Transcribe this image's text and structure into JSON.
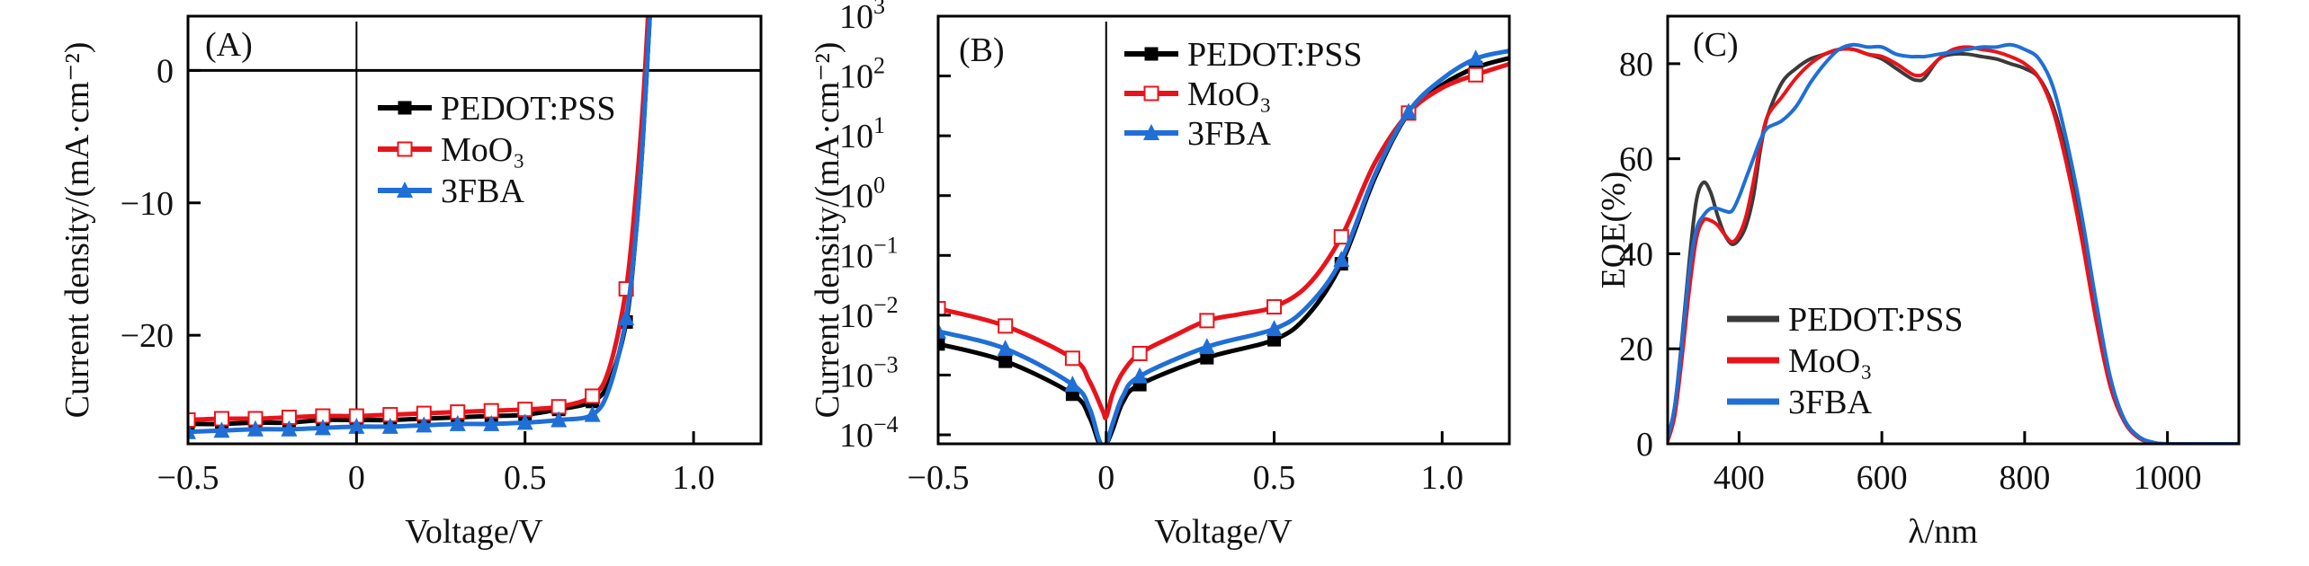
{
  "colors": {
    "pedot": "#000000",
    "moo3": "#e8141b",
    "fba": "#1f6fd6",
    "pedot_eqe": "#3a3a3a"
  },
  "chart_data": [
    {
      "id": "A",
      "type": "line",
      "panel_label": "(A)",
      "title": "",
      "xlabel": "Voltage/V",
      "ylabel": "Current density/(mA·cm⁻²)",
      "xlim": [
        -0.5,
        1.2
      ],
      "ylim": [
        -28.2,
        4.1
      ],
      "xticks": [
        -0.5,
        0,
        0.5,
        1.0
      ],
      "xtick_labels": [
        "−0.5",
        "0",
        "0.5",
        "1.0"
      ],
      "yticks": [
        0,
        -10,
        -20
      ],
      "ytick_labels": [
        "0",
        "−10",
        "−20"
      ],
      "zero_lines": {
        "x": 0,
        "y": 0
      },
      "legend_position": "upper-center",
      "series": [
        {
          "name": "PEDOT:PSS",
          "color_key": "pedot",
          "marker": "filled-square",
          "x": [
            -0.5,
            -0.4,
            -0.3,
            -0.2,
            -0.1,
            0,
            0.1,
            0.2,
            0.3,
            0.4,
            0.5,
            0.6,
            0.7,
            0.75,
            0.8,
            0.83,
            0.85,
            0.87
          ],
          "y": [
            -26.7,
            -26.7,
            -26.6,
            -26.6,
            -26.4,
            -26.4,
            -26.4,
            -26.3,
            -26.2,
            -26.1,
            -26.0,
            -25.6,
            -25.0,
            -23.5,
            -19.0,
            -12.0,
            -5.0,
            4.1
          ],
          "marker_x": [
            -0.5,
            -0.4,
            -0.3,
            -0.2,
            -0.1,
            0,
            0.1,
            0.2,
            0.3,
            0.4,
            0.5,
            0.6,
            0.7,
            0.8
          ]
        },
        {
          "name": "MoO₃",
          "color_key": "moo3",
          "marker": "open-square",
          "x": [
            -0.5,
            -0.4,
            -0.3,
            -0.2,
            -0.1,
            0,
            0.1,
            0.2,
            0.3,
            0.4,
            0.5,
            0.6,
            0.7,
            0.75,
            0.8,
            0.83,
            0.85,
            0.865
          ],
          "y": [
            -26.4,
            -26.3,
            -26.3,
            -26.2,
            -26.1,
            -26.1,
            -26.0,
            -25.9,
            -25.8,
            -25.7,
            -25.6,
            -25.4,
            -24.6,
            -22.5,
            -16.5,
            -9.0,
            -2.5,
            4.1
          ],
          "marker_x": [
            -0.5,
            -0.4,
            -0.3,
            -0.2,
            -0.1,
            0,
            0.1,
            0.2,
            0.3,
            0.4,
            0.5,
            0.6,
            0.7,
            0.8
          ]
        },
        {
          "name": "3FBA",
          "color_key": "fba",
          "marker": "filled-triangle",
          "x": [
            -0.5,
            -0.4,
            -0.3,
            -0.2,
            -0.1,
            0,
            0.1,
            0.2,
            0.3,
            0.4,
            0.5,
            0.6,
            0.7,
            0.75,
            0.8,
            0.83,
            0.85,
            0.87
          ],
          "y": [
            -27.3,
            -27.2,
            -27.1,
            -27.1,
            -27.0,
            -26.9,
            -26.9,
            -26.8,
            -26.7,
            -26.7,
            -26.6,
            -26.4,
            -26.0,
            -24.0,
            -18.7,
            -12.0,
            -5.0,
            4.1
          ],
          "marker_x": [
            -0.5,
            -0.4,
            -0.3,
            -0.2,
            -0.1,
            0,
            0.1,
            0.2,
            0.3,
            0.4,
            0.5,
            0.6,
            0.7,
            0.8
          ]
        }
      ]
    },
    {
      "id": "B",
      "type": "line",
      "scale": "log-y",
      "panel_label": "(B)",
      "title": "",
      "xlabel": "Voltage/V",
      "ylabel": "Current density/(mA·cm⁻²)",
      "xlim": [
        -0.5,
        1.2
      ],
      "ylim_log10": [
        -4.15,
        3
      ],
      "xticks": [
        -0.5,
        0,
        0.5,
        1.0
      ],
      "xtick_labels": [
        "−0.5",
        "0",
        "0.5",
        "1.0"
      ],
      "yticks_log10": [
        3,
        2,
        1,
        0,
        -1,
        -2,
        -3,
        -4
      ],
      "ytick_labels": [
        [
          "10",
          "3"
        ],
        [
          "10",
          "2"
        ],
        [
          "10",
          "1"
        ],
        [
          "10",
          "0"
        ],
        [
          "10",
          "−1"
        ],
        [
          "10",
          "−2"
        ],
        [
          "10",
          "−3"
        ],
        [
          "10",
          "−4"
        ]
      ],
      "zero_lines": {
        "x": 0
      },
      "legend_position": "upper-center",
      "series": [
        {
          "name": "PEDOT:PSS",
          "color_key": "pedot",
          "marker": "filled-square",
          "x": [
            -0.5,
            -0.3,
            -0.1,
            -0.05,
            -0.02,
            0,
            0.02,
            0.05,
            0.1,
            0.3,
            0.5,
            0.6,
            0.7,
            0.8,
            0.9,
            1.0,
            1.1,
            1.2
          ],
          "log10_y": [
            -2.48,
            -2.77,
            -3.32,
            -3.7,
            -4.15,
            -4.15,
            -3.9,
            -3.45,
            -3.16,
            -2.71,
            -2.41,
            -2.0,
            -1.14,
            0.3,
            1.38,
            1.85,
            2.14,
            2.3
          ],
          "marker_x": [
            -0.5,
            -0.3,
            -0.1,
            0.1,
            0.3,
            0.5,
            0.7,
            0.9,
            1.1
          ]
        },
        {
          "name": "MoO₃",
          "color_key": "moo3",
          "marker": "open-square",
          "x": [
            -0.5,
            -0.3,
            -0.1,
            -0.05,
            -0.01,
            0,
            0.02,
            0.05,
            0.1,
            0.2,
            0.3,
            0.4,
            0.5,
            0.6,
            0.7,
            0.8,
            0.9,
            1.0,
            1.1,
            1.2
          ],
          "log10_y": [
            -1.89,
            -2.18,
            -2.72,
            -3.1,
            -3.6,
            -3.7,
            -3.3,
            -2.95,
            -2.64,
            -2.35,
            -2.09,
            -1.98,
            -1.86,
            -1.5,
            -0.69,
            0.55,
            1.38,
            1.8,
            2.02,
            2.2
          ],
          "marker_x": [
            -0.5,
            -0.3,
            -0.1,
            0.1,
            0.3,
            0.5,
            0.7,
            0.9,
            1.1
          ]
        },
        {
          "name": "3FBA",
          "color_key": "fba",
          "marker": "filled-triangle",
          "x": [
            -0.5,
            -0.3,
            -0.1,
            -0.05,
            -0.02,
            0,
            0.02,
            0.05,
            0.1,
            0.3,
            0.5,
            0.6,
            0.7,
            0.8,
            0.9,
            1.0,
            1.1,
            1.2
          ],
          "log10_y": [
            -2.27,
            -2.56,
            -3.16,
            -3.55,
            -4.1,
            -4.15,
            -3.8,
            -3.35,
            -3.02,
            -2.53,
            -2.23,
            -1.85,
            -1.07,
            0.35,
            1.4,
            1.95,
            2.29,
            2.42
          ],
          "marker_x": [
            -0.5,
            -0.3,
            -0.1,
            0.1,
            0.3,
            0.5,
            0.7,
            0.9,
            1.1
          ]
        }
      ]
    },
    {
      "id": "C",
      "type": "line",
      "panel_label": "(C)",
      "title": "",
      "xlabel": "λ/nm",
      "ylabel": "EQE(%)",
      "xlim": [
        300,
        1100
      ],
      "ylim": [
        0,
        90
      ],
      "xticks": [
        400,
        600,
        800,
        1000
      ],
      "xtick_labels": [
        "400",
        "600",
        "800",
        "1000"
      ],
      "yticks": [
        0,
        20,
        40,
        60,
        80
      ],
      "ytick_labels": [
        "0",
        "20",
        "40",
        "60",
        "80"
      ],
      "legend_position": "lower-left",
      "series": [
        {
          "name": "PEDOT:PSS",
          "color_key": "pedot_eqe",
          "x": [
            300,
            310,
            320,
            330,
            340,
            350,
            360,
            370,
            380,
            390,
            400,
            410,
            420,
            430,
            440,
            460,
            480,
            500,
            520,
            540,
            560,
            580,
            600,
            620,
            640,
            650,
            660,
            680,
            700,
            720,
            740,
            760,
            780,
            800,
            820,
            840,
            860,
            880,
            900,
            920,
            940,
            960,
            980,
            1000,
            1050,
            1100
          ],
          "y": [
            1,
            8,
            22,
            38,
            51,
            55,
            53,
            48,
            44,
            42,
            43,
            46,
            52,
            62,
            69,
            76,
            79,
            81,
            82,
            83,
            83,
            82,
            81,
            79,
            77,
            76.5,
            77,
            81,
            82,
            82,
            81.5,
            81,
            80,
            79,
            77,
            71,
            60,
            45,
            28,
            13,
            5,
            1.5,
            0.3,
            0,
            0,
            0
          ]
        },
        {
          "name": "MoO₃",
          "color_key": "moo3",
          "x": [
            300,
            310,
            320,
            330,
            340,
            350,
            360,
            370,
            380,
            390,
            400,
            410,
            420,
            430,
            440,
            460,
            480,
            500,
            520,
            540,
            560,
            580,
            600,
            620,
            640,
            650,
            660,
            680,
            700,
            720,
            740,
            760,
            780,
            800,
            820,
            840,
            860,
            880,
            900,
            920,
            940,
            960,
            980,
            1000,
            1050,
            1100
          ],
          "y": [
            0.5,
            6,
            18,
            32,
            43,
            47,
            47,
            46,
            44,
            42.5,
            44,
            48,
            55,
            63,
            69,
            73,
            77,
            80,
            82,
            83,
            83,
            82,
            81.5,
            80,
            78,
            77.5,
            78,
            81,
            83,
            83.5,
            83,
            82.5,
            81.5,
            80,
            77,
            70,
            58,
            43,
            26,
            12,
            4.5,
            1.2,
            0.2,
            0,
            0,
            0
          ]
        },
        {
          "name": "3FBA",
          "color_key": "fba",
          "x": [
            300,
            310,
            320,
            330,
            340,
            350,
            360,
            370,
            380,
            390,
            400,
            410,
            420,
            430,
            440,
            460,
            480,
            500,
            520,
            540,
            560,
            580,
            600,
            620,
            640,
            650,
            660,
            680,
            700,
            720,
            740,
            760,
            780,
            800,
            820,
            840,
            860,
            880,
            900,
            920,
            940,
            960,
            980,
            1000,
            1050,
            1100
          ],
          "y": [
            1,
            8,
            21,
            36,
            45,
            48,
            49.5,
            49.5,
            49,
            49,
            52,
            56,
            60,
            64,
            66.5,
            68,
            71,
            76,
            80,
            83,
            84,
            83.5,
            83.5,
            82,
            81.5,
            81.5,
            81.5,
            82,
            82.5,
            83,
            83.5,
            83.5,
            84,
            83,
            81,
            75,
            63,
            48,
            30,
            14,
            5,
            1.5,
            0.3,
            0,
            0,
            0
          ]
        }
      ]
    }
  ]
}
